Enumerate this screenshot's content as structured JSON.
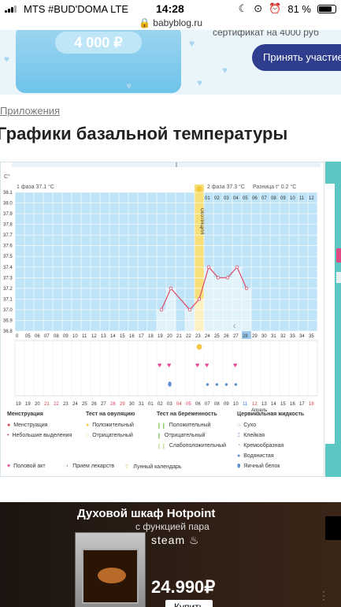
{
  "status_bar": {
    "carrier": "MTS #BUD'DOMA  LTE",
    "time": "14:28",
    "battery": "81 %",
    "battery_level": 0.81
  },
  "browser": {
    "url": "babyblog.ru"
  },
  "banner": {
    "amount": "4 000 ₽",
    "subtitle": "сертификат на 4000 руб",
    "button_label": "Принять участие"
  },
  "breadcrumb": "Приложения",
  "page_title": "Графики базальной температуры",
  "chart_header": {
    "unit": "C°",
    "phase1": "1 фаза  37.1 °C",
    "ovulation": "ОВУЛЯЦИЯ",
    "phase2": "2 фаза  37.3 °C",
    "diff": "Разница t°  0.2 °C",
    "month": "Апрель"
  },
  "chart_data": {
    "type": "line",
    "title": "",
    "ylabel": "C°",
    "ylim": [
      36.8,
      38.1
    ],
    "y_ticks": [
      "38.1",
      "38.0",
      "37.9",
      "37.8",
      "37.7",
      "37.6",
      "37.5",
      "37.4",
      "37.3",
      "37.2",
      "37.1",
      "37.0",
      "36.9",
      "36.8"
    ],
    "cycle_days": [
      "01",
      "03",
      "05",
      "07",
      "09",
      "11",
      "13",
      "15",
      "17",
      "19",
      "21",
      "23",
      "25",
      "27",
      "29",
      "31",
      "33",
      "35"
    ],
    "x_day_labels": [
      "0",
      "05",
      "06",
      "07",
      "08",
      "09",
      "10",
      "11",
      "12",
      "13",
      "14",
      "15",
      "16",
      "17",
      "18",
      "19",
      "20",
      "21",
      "22",
      "23",
      "24",
      "25",
      "26",
      "27",
      "28",
      "29",
      "30",
      "31",
      "32",
      "33",
      "34",
      "35"
    ],
    "phase2_days": [
      "01",
      "02",
      "03",
      "04",
      "05",
      "06",
      "07",
      "08",
      "09",
      "10",
      "11",
      "12"
    ],
    "dates": [
      "19",
      "19",
      "20",
      "21",
      "22",
      "23",
      "24",
      "25",
      "26",
      "27",
      "28",
      "29",
      "30",
      "31",
      "01",
      "02",
      "03",
      "04",
      "05",
      "06",
      "07",
      "08",
      "09",
      "10",
      "11",
      "12",
      "13",
      "14",
      "15",
      "16",
      "17",
      "18"
    ],
    "series": [
      {
        "x": [
          "19",
          "20",
          "21",
          "22",
          "23",
          "24",
          "25",
          "26",
          "27",
          "28"
        ],
        "values": [
          37.0,
          37.2,
          null,
          37.0,
          37.1,
          37.4,
          37.3,
          37.3,
          37.4,
          37.2
        ]
      }
    ],
    "ovulation_day": "23",
    "highlight_day": "28",
    "intercourse_days": [
      "19",
      "20",
      "23",
      "24",
      "27"
    ],
    "test_positive_days": [
      "23"
    ],
    "grid": true
  },
  "legend": {
    "menstruation": {
      "title": "Менструация",
      "items": [
        "Менструация",
        "Небольшие выделения"
      ]
    },
    "ovulation_test": {
      "title": "Тест на овуляцию",
      "items": [
        "Положительный",
        "Отрицательный"
      ]
    },
    "pregnancy_test": {
      "title": "Тест на беременность",
      "items": [
        "Положительный",
        "Отрицательный",
        "Слабоположительный"
      ]
    },
    "cervical": {
      "title": "Цервикальная жидкость",
      "items": [
        "Сухо",
        "Клейкая",
        "Кремообразная",
        "Водянистая",
        "Яичный белок"
      ]
    },
    "extra": [
      "Половой акт",
      "Прием лекарств",
      "Лунный календарь"
    ]
  },
  "ad": {
    "title": "Духовой шкаф Hotpoint",
    "subtitle": "с функцией пара",
    "brand": "steam",
    "price": "24.990₽",
    "buy_label": "Купить"
  },
  "colors": {
    "chart_bg": "#bfe3f7",
    "ovulation": "#f7e07a",
    "line": "#e04a6a",
    "heart": "#e8459a",
    "accent_button": "#2f3d8f"
  }
}
